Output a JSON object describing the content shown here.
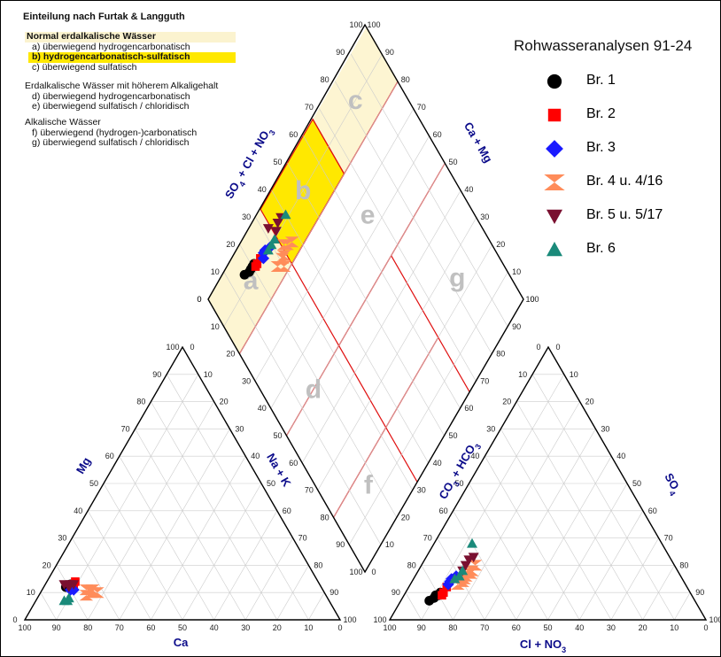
{
  "info_panel": {
    "title": "Einteilung nach Furtak & Langguth",
    "group1_title": "Normal erdalkalische Wässer",
    "group1_items": [
      "a) überwiegend hydrogencarbonatisch",
      "b) hydrogencarbonatisch-sulfatisch",
      "c) überwiegend sulfatisch"
    ],
    "group2_title": "Erdalkalische Wässer mit höherem Alkaligehalt",
    "group2_items": [
      "d) überwiegend hydrogencarbonatisch",
      "e) überwiegend sulfatisch / chloridisch"
    ],
    "group3_title": "Alkalische Wässer",
    "group3_items": [
      "f) überwiegend (hydrogen-)carbonatisch",
      "g) überwiegend sulfatisch / chloridisch"
    ]
  },
  "legend": {
    "title": "Rohwasseranalysen 91-24",
    "items": [
      {
        "label": "Br. 1",
        "color": "#000000",
        "marker": "circle"
      },
      {
        "label": "Br. 2",
        "color": "#ff0000",
        "marker": "square"
      },
      {
        "label": "Br. 3",
        "color": "#1a1aff",
        "marker": "diamond"
      },
      {
        "label": "Br. 4 u. 4/16",
        "color": "#ff8c5a",
        "marker": "hourglass"
      },
      {
        "label": "Br. 5 u. 5/17",
        "color": "#7a1030",
        "marker": "triangle-down"
      },
      {
        "label": "Br. 6",
        "color": "#1a8a7a",
        "marker": "triangle-up"
      }
    ]
  },
  "axis_labels": {
    "mg": "Mg",
    "ca": "Ca",
    "na_k": "Na + K",
    "so4_cl_no3_main": "SO",
    "so4_cl_no3_sub": "4",
    "so4_cl_no3_rest": " + Cl + NO",
    "so4_cl_no3_sub2": "3",
    "ca_mg": "Ca + Mg",
    "co3_hco3_main": "CO",
    "co3_hco3_sub": "3",
    "co3_hco3_rest": " + HCO",
    "co3_hco3_sub2": "3",
    "so4_main": "SO",
    "so4_sub": "4",
    "cl_no3_main": "Cl + NO",
    "cl_no3_sub": "3"
  },
  "field_letters": [
    "a",
    "b",
    "c",
    "d",
    "e",
    "f",
    "g"
  ],
  "tick_values": [
    "0",
    "10",
    "20",
    "30",
    "40",
    "50",
    "60",
    "70",
    "80",
    "90",
    "100"
  ],
  "colors": {
    "field_fill_light": "#fdf5d2",
    "field_fill_highlight": "#ffe800",
    "field_line": "#e01010",
    "grid_line": "#cccccc",
    "axis_title": "#0b0b8a",
    "field_letter": "#c0c0c0"
  },
  "chart_data": {
    "type": "piper",
    "field_scheme": "Furtak & Langguth",
    "cation_triangle": {
      "components": [
        "Ca",
        "Mg",
        "Na + K"
      ],
      "series": [
        {
          "name": "Br. 1",
          "points": [
            [
              80,
              12,
              8
            ],
            [
              79,
              13,
              8
            ],
            [
              81,
              12,
              7
            ]
          ]
        },
        {
          "name": "Br. 2",
          "points": [
            [
              78,
              13,
              9
            ],
            [
              77,
              14,
              9
            ]
          ]
        },
        {
          "name": "Br. 3",
          "points": [
            [
              79,
              11,
              10
            ],
            [
              80,
              11,
              9
            ]
          ]
        },
        {
          "name": "Br. 4 u. 4/16",
          "points": [
            [
              74,
              10,
              16
            ],
            [
              73,
              11,
              16
            ],
            [
              76,
              9,
              15
            ],
            [
              72,
              10,
              18
            ],
            [
              75,
              11,
              14
            ]
          ]
        },
        {
          "name": "Br. 5 u. 5/17",
          "points": [
            [
              79,
              13,
              8
            ],
            [
              78,
              13,
              9
            ],
            [
              80,
              12,
              8
            ],
            [
              81,
              13,
              6
            ]
          ]
        },
        {
          "name": "Br. 6",
          "points": [
            [
              83,
              7,
              10
            ],
            [
              82,
              8,
              10
            ],
            [
              84,
              7,
              9
            ]
          ]
        }
      ]
    },
    "anion_triangle": {
      "components": [
        "CO3 + HCO3",
        "SO4",
        "Cl + NO3"
      ],
      "series": [
        {
          "name": "Br. 1",
          "points": [
            [
              82,
              8,
              10
            ],
            [
              80,
              9,
              11
            ],
            [
              84,
              7,
              9
            ],
            [
              79,
              10,
              11
            ],
            [
              81,
              9,
              10
            ]
          ]
        },
        {
          "name": "Br. 2",
          "points": [
            [
              78,
              10,
              12
            ],
            [
              76,
              12,
              12
            ],
            [
              79,
              9,
              12
            ]
          ]
        },
        {
          "name": "Br. 3",
          "points": [
            [
              75,
              13,
              12
            ],
            [
              73,
              15,
              12
            ],
            [
              71,
              16,
              13
            ],
            [
              74,
              14,
              12
            ]
          ]
        },
        {
          "name": "Br. 4 u. 4/16",
          "points": [
            [
              72,
              13,
              15
            ],
            [
              68,
              16,
              16
            ],
            [
              65,
              18,
              17
            ],
            [
              70,
              14,
              16
            ],
            [
              66,
              17,
              17
            ],
            [
              63,
              20,
              17
            ],
            [
              69,
              15,
              16
            ]
          ]
        },
        {
          "name": "Br. 5 u. 5/17",
          "points": [
            [
              64,
              22,
              14
            ],
            [
              66,
              20,
              14
            ],
            [
              62,
              23,
              15
            ],
            [
              68,
              18,
              14
            ]
          ]
        },
        {
          "name": "Br. 6",
          "points": [
            [
              72,
              15,
              13
            ],
            [
              70,
              16,
              14
            ],
            [
              60,
              28,
              12
            ],
            [
              68,
              18,
              14
            ]
          ]
        }
      ]
    },
    "fields": [
      {
        "id": "a",
        "label": "a"
      },
      {
        "id": "b",
        "label": "b"
      },
      {
        "id": "c",
        "label": "c"
      },
      {
        "id": "d",
        "label": "d"
      },
      {
        "id": "e",
        "label": "e"
      },
      {
        "id": "f",
        "label": "f"
      },
      {
        "id": "g",
        "label": "g"
      }
    ]
  }
}
